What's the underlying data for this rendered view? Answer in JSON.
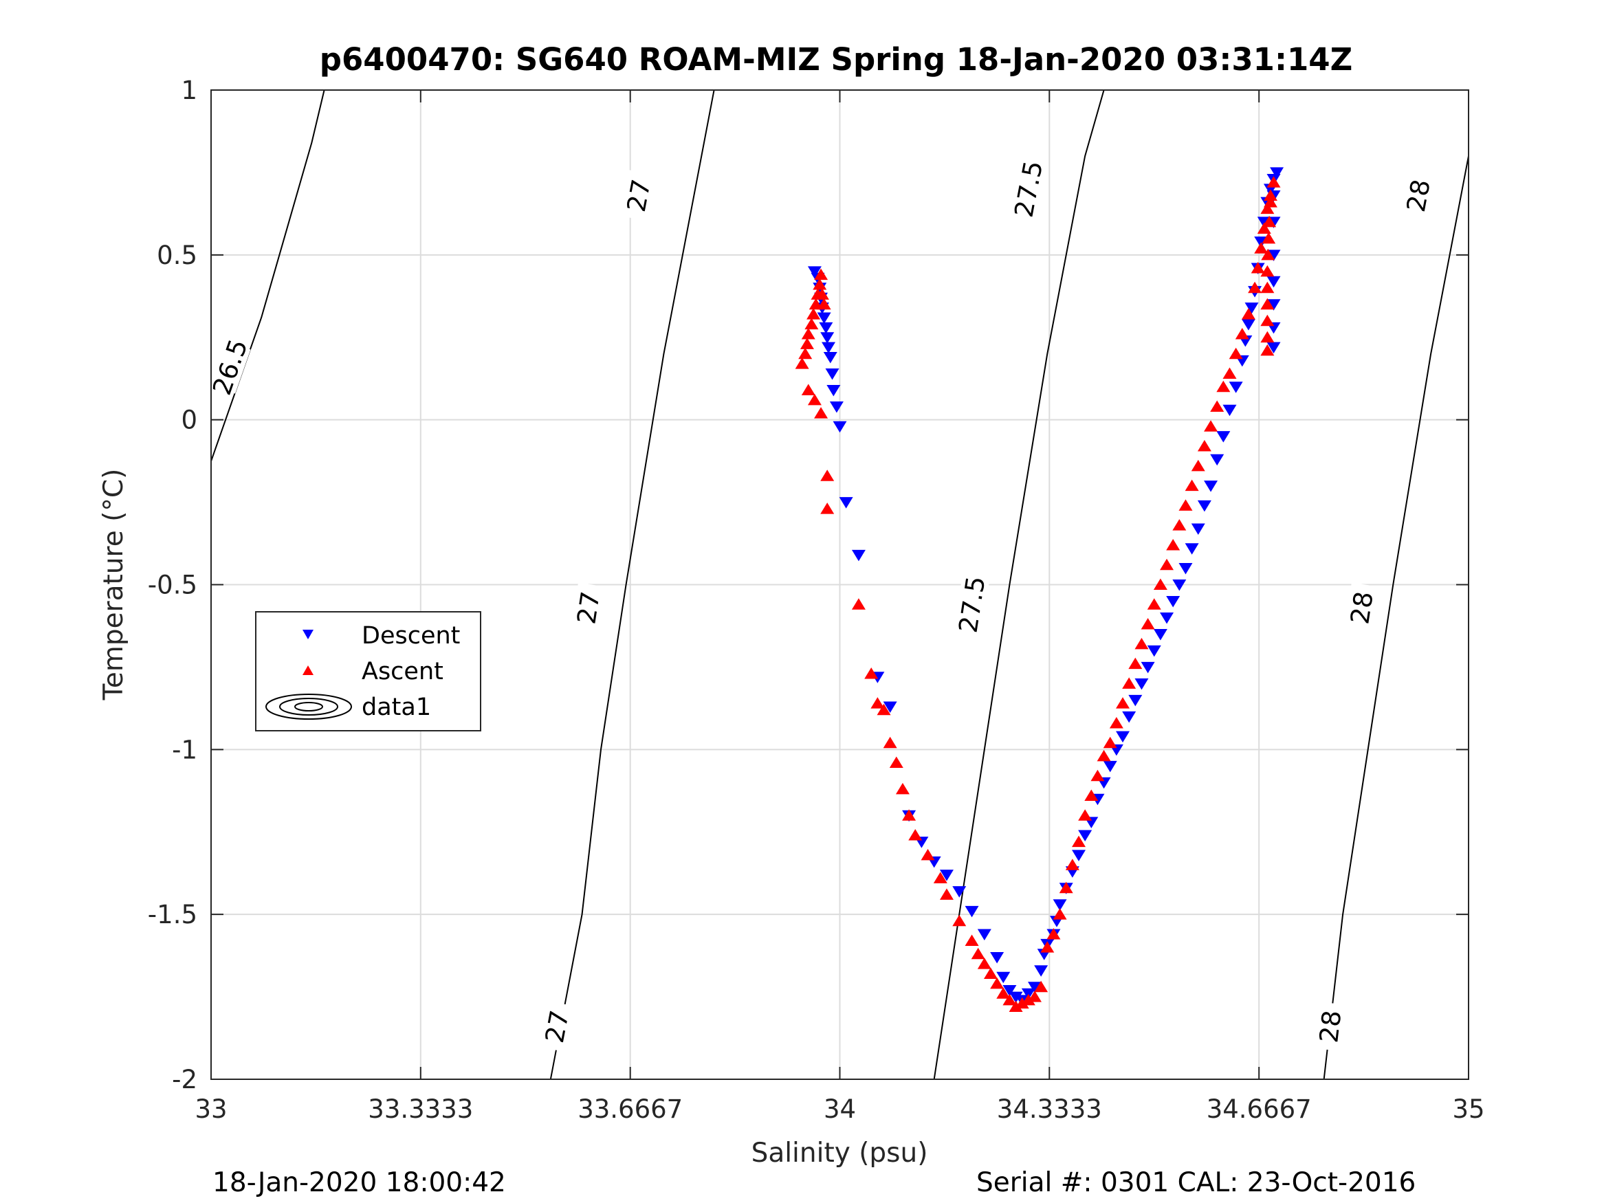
{
  "chart_data": {
    "type": "scatter",
    "title": "p6400470: SG640 ROAM-MIZ Spring 18-Jan-2020 03:31:14Z",
    "xlabel": "Salinity (psu)",
    "ylabel": "Temperature (°C)",
    "xlim": [
      33,
      35
    ],
    "ylim": [
      -2,
      1
    ],
    "x_ticks": [
      33,
      33.3333,
      33.6667,
      34,
      34.3333,
      34.6667,
      35
    ],
    "x_tick_labels": [
      "33",
      "33.3333",
      "33.6667",
      "34",
      "34.3333",
      "34.6667",
      "35"
    ],
    "y_ticks": [
      -2,
      -1.5,
      -1,
      -0.5,
      0,
      0.5,
      1
    ],
    "y_tick_labels": [
      "-2",
      "-1.5",
      "-1",
      "-0.5",
      "0",
      "0.5",
      "1"
    ],
    "grid": true,
    "legend": {
      "placement": "middle-left",
      "entries": [
        "Descent",
        "Ascent",
        "data1"
      ]
    },
    "colors": {
      "descent": "#0000ff",
      "ascent": "#ff0000",
      "contour": "#000000",
      "grid": "#dcdcdc"
    },
    "contours": [
      {
        "label": "26.5",
        "points": [
          [
            32.99,
            -0.18
          ],
          [
            33.08,
            0.31
          ],
          [
            33.16,
            0.84
          ],
          [
            33.18,
            1.0
          ]
        ],
        "label_positions": [
          [
            33.03,
            0.16
          ]
        ]
      },
      {
        "label": "27",
        "points": [
          [
            33.54,
            -2.0
          ],
          [
            33.59,
            -1.5
          ],
          [
            33.62,
            -1.0
          ],
          [
            33.66,
            -0.5
          ],
          [
            33.72,
            0.2
          ],
          [
            33.78,
            0.8
          ],
          [
            33.8,
            1.0
          ]
        ],
        "label_positions": [
          [
            33.55,
            -1.84
          ],
          [
            33.6,
            -0.57
          ],
          [
            33.68,
            0.68
          ]
        ]
      },
      {
        "label": "27.5",
        "points": [
          [
            34.15,
            -2.0
          ],
          [
            34.19,
            -1.5
          ],
          [
            34.23,
            -1.0
          ],
          [
            34.27,
            -0.5
          ],
          [
            34.33,
            0.2
          ],
          [
            34.39,
            0.8
          ],
          [
            34.42,
            1.0
          ]
        ],
        "label_positions": [
          [
            34.21,
            -0.56
          ],
          [
            34.3,
            0.7
          ]
        ]
      },
      {
        "label": "28",
        "points": [
          [
            34.77,
            -2.0
          ],
          [
            34.8,
            -1.5
          ],
          [
            34.84,
            -1.0
          ],
          [
            34.88,
            -0.5
          ],
          [
            34.94,
            0.2
          ],
          [
            35.0,
            0.8
          ],
          [
            35.03,
            1.0
          ]
        ],
        "label_positions": [
          [
            34.78,
            -1.84
          ],
          [
            34.83,
            -0.57
          ],
          [
            34.92,
            0.68
          ]
        ]
      }
    ],
    "series": [
      {
        "name": "Descent",
        "marker": "triangle-down",
        "color": "#0000ff",
        "points": [
          [
            33.96,
            0.45
          ],
          [
            33.965,
            0.43
          ],
          [
            33.968,
            0.4
          ],
          [
            33.97,
            0.37
          ],
          [
            33.972,
            0.34
          ],
          [
            33.975,
            0.31
          ],
          [
            33.978,
            0.28
          ],
          [
            33.98,
            0.25
          ],
          [
            33.982,
            0.22
          ],
          [
            33.985,
            0.19
          ],
          [
            33.988,
            0.14
          ],
          [
            33.99,
            0.09
          ],
          [
            33.995,
            0.04
          ],
          [
            34.0,
            -0.02
          ],
          [
            34.01,
            -0.25
          ],
          [
            34.03,
            -0.41
          ],
          [
            34.06,
            -0.78
          ],
          [
            34.08,
            -0.87
          ],
          [
            34.11,
            -1.2
          ],
          [
            34.13,
            -1.28
          ],
          [
            34.15,
            -1.34
          ],
          [
            34.17,
            -1.38
          ],
          [
            34.19,
            -1.43
          ],
          [
            34.21,
            -1.49
          ],
          [
            34.23,
            -1.56
          ],
          [
            34.25,
            -1.63
          ],
          [
            34.26,
            -1.69
          ],
          [
            34.27,
            -1.73
          ],
          [
            34.28,
            -1.75
          ],
          [
            34.29,
            -1.76
          ],
          [
            34.3,
            -1.74
          ],
          [
            34.31,
            -1.72
          ],
          [
            34.32,
            -1.67
          ],
          [
            34.325,
            -1.62
          ],
          [
            34.33,
            -1.59
          ],
          [
            34.34,
            -1.56
          ],
          [
            34.345,
            -1.52
          ],
          [
            34.35,
            -1.47
          ],
          [
            34.36,
            -1.42
          ],
          [
            34.37,
            -1.37
          ],
          [
            34.38,
            -1.32
          ],
          [
            34.39,
            -1.26
          ],
          [
            34.4,
            -1.22
          ],
          [
            34.41,
            -1.15
          ],
          [
            34.42,
            -1.1
          ],
          [
            34.43,
            -1.05
          ],
          [
            34.44,
            -1.0
          ],
          [
            34.45,
            -0.96
          ],
          [
            34.46,
            -0.9
          ],
          [
            34.47,
            -0.85
          ],
          [
            34.48,
            -0.8
          ],
          [
            34.49,
            -0.75
          ],
          [
            34.5,
            -0.7
          ],
          [
            34.51,
            -0.65
          ],
          [
            34.52,
            -0.6
          ],
          [
            34.53,
            -0.55
          ],
          [
            34.54,
            -0.5
          ],
          [
            34.55,
            -0.45
          ],
          [
            34.56,
            -0.39
          ],
          [
            34.57,
            -0.33
          ],
          [
            34.58,
            -0.26
          ],
          [
            34.59,
            -0.2
          ],
          [
            34.6,
            -0.12
          ],
          [
            34.61,
            -0.05
          ],
          [
            34.62,
            0.03
          ],
          [
            34.63,
            0.1
          ],
          [
            34.64,
            0.18
          ],
          [
            34.645,
            0.24
          ],
          [
            34.65,
            0.29
          ],
          [
            34.655,
            0.34
          ],
          [
            34.66,
            0.39
          ],
          [
            34.665,
            0.46
          ],
          [
            34.67,
            0.54
          ],
          [
            34.675,
            0.6
          ],
          [
            34.68,
            0.66
          ],
          [
            34.685,
            0.7
          ],
          [
            34.69,
            0.73
          ],
          [
            34.695,
            0.75
          ],
          [
            34.69,
            0.68
          ],
          [
            34.69,
            0.6
          ],
          [
            34.69,
            0.5
          ],
          [
            34.69,
            0.42
          ],
          [
            34.69,
            0.35
          ],
          [
            34.69,
            0.28
          ],
          [
            34.69,
            0.22
          ]
        ]
      },
      {
        "name": "Ascent",
        "marker": "triangle-up",
        "color": "#ff0000",
        "points": [
          [
            33.94,
            0.17
          ],
          [
            33.945,
            0.2
          ],
          [
            33.948,
            0.23
          ],
          [
            33.95,
            0.26
          ],
          [
            33.955,
            0.29
          ],
          [
            33.958,
            0.32
          ],
          [
            33.962,
            0.35
          ],
          [
            33.965,
            0.38
          ],
          [
            33.968,
            0.41
          ],
          [
            33.97,
            0.44
          ],
          [
            33.972,
            0.38
          ],
          [
            33.975,
            0.35
          ],
          [
            33.95,
            0.09
          ],
          [
            33.96,
            0.06
          ],
          [
            33.97,
            0.02
          ],
          [
            33.98,
            -0.17
          ],
          [
            33.98,
            -0.27
          ],
          [
            34.03,
            -0.56
          ],
          [
            34.05,
            -0.77
          ],
          [
            34.06,
            -0.86
          ],
          [
            34.07,
            -0.88
          ],
          [
            34.08,
            -0.98
          ],
          [
            34.09,
            -1.04
          ],
          [
            34.1,
            -1.12
          ],
          [
            34.11,
            -1.2
          ],
          [
            34.12,
            -1.26
          ],
          [
            34.14,
            -1.32
          ],
          [
            34.16,
            -1.39
          ],
          [
            34.17,
            -1.44
          ],
          [
            34.19,
            -1.52
          ],
          [
            34.21,
            -1.58
          ],
          [
            34.22,
            -1.62
          ],
          [
            34.23,
            -1.65
          ],
          [
            34.24,
            -1.68
          ],
          [
            34.25,
            -1.71
          ],
          [
            34.26,
            -1.74
          ],
          [
            34.27,
            -1.76
          ],
          [
            34.28,
            -1.78
          ],
          [
            34.29,
            -1.77
          ],
          [
            34.3,
            -1.76
          ],
          [
            34.31,
            -1.75
          ],
          [
            34.32,
            -1.72
          ],
          [
            34.33,
            -1.6
          ],
          [
            34.34,
            -1.56
          ],
          [
            34.35,
            -1.5
          ],
          [
            34.36,
            -1.42
          ],
          [
            34.37,
            -1.35
          ],
          [
            34.38,
            -1.28
          ],
          [
            34.39,
            -1.2
          ],
          [
            34.4,
            -1.14
          ],
          [
            34.41,
            -1.08
          ],
          [
            34.42,
            -1.02
          ],
          [
            34.43,
            -0.98
          ],
          [
            34.44,
            -0.92
          ],
          [
            34.45,
            -0.86
          ],
          [
            34.46,
            -0.8
          ],
          [
            34.47,
            -0.74
          ],
          [
            34.48,
            -0.68
          ],
          [
            34.49,
            -0.62
          ],
          [
            34.5,
            -0.56
          ],
          [
            34.51,
            -0.5
          ],
          [
            34.52,
            -0.44
          ],
          [
            34.53,
            -0.38
          ],
          [
            34.54,
            -0.32
          ],
          [
            34.55,
            -0.26
          ],
          [
            34.56,
            -0.2
          ],
          [
            34.57,
            -0.14
          ],
          [
            34.58,
            -0.08
          ],
          [
            34.59,
            -0.02
          ],
          [
            34.6,
            0.04
          ],
          [
            34.61,
            0.1
          ],
          [
            34.62,
            0.14
          ],
          [
            34.63,
            0.2
          ],
          [
            34.64,
            0.26
          ],
          [
            34.65,
            0.32
          ],
          [
            34.66,
            0.4
          ],
          [
            34.665,
            0.46
          ],
          [
            34.67,
            0.52
          ],
          [
            34.675,
            0.58
          ],
          [
            34.68,
            0.64
          ],
          [
            34.685,
            0.68
          ],
          [
            34.69,
            0.72
          ],
          [
            34.685,
            0.66
          ],
          [
            34.683,
            0.6
          ],
          [
            34.682,
            0.55
          ],
          [
            34.681,
            0.5
          ],
          [
            34.68,
            0.45
          ],
          [
            34.68,
            0.4
          ],
          [
            34.68,
            0.35
          ],
          [
            34.68,
            0.3
          ],
          [
            34.68,
            0.25
          ],
          [
            34.68,
            0.21
          ]
        ]
      }
    ],
    "footer": {
      "left": "18-Jan-2020 18:00:42",
      "right": "Serial #: 0301  CAL: 23-Oct-2016"
    }
  }
}
